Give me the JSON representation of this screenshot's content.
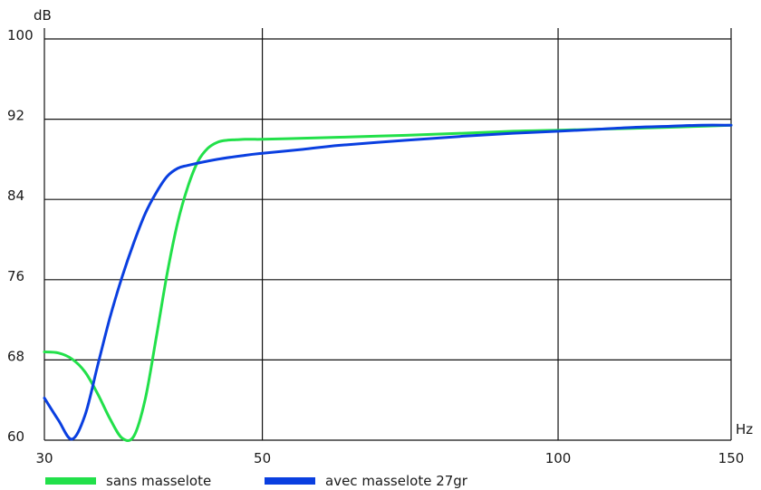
{
  "chart_data": {
    "type": "line",
    "x_scale": "log",
    "grid": true,
    "legend_position": "bottom-left",
    "xlabel": "Hz",
    "ylabel": "dB",
    "xlim": [
      30,
      150
    ],
    "ylim": [
      60,
      100
    ],
    "x_ticks": [
      30,
      50,
      100,
      150
    ],
    "x_tick_labels": [
      "30",
      "50",
      "100",
      "150"
    ],
    "y_ticks": [
      60,
      68,
      76,
      84,
      92,
      100
    ],
    "y_tick_labels": [
      "60",
      "68",
      "76",
      "84",
      "92",
      "100"
    ],
    "series": [
      {
        "name": "sans masselote",
        "color": "#22e04a",
        "x": [
          30,
          31,
          32,
          33,
          34,
          35,
          36,
          37,
          38,
          39,
          40,
          41,
          42,
          43,
          44,
          45,
          46,
          47,
          48,
          49,
          50,
          55,
          60,
          70,
          80,
          90,
          100,
          110,
          120,
          130,
          140,
          150
        ],
        "y": [
          68.8,
          68.7,
          68.1,
          66.8,
          64.6,
          62.1,
          60.2,
          60.4,
          64.1,
          70.3,
          76.6,
          81.7,
          85.3,
          87.8,
          89.1,
          89.7,
          89.9,
          89.95,
          90.0,
          90.0,
          90.0,
          90.1,
          90.2,
          90.4,
          90.6,
          90.8,
          90.9,
          91.0,
          91.1,
          91.2,
          91.3,
          91.4
        ]
      },
      {
        "name": "avec masselote 27gr",
        "color": "#0a3fe0",
        "x": [
          30,
          31,
          32,
          33,
          34,
          35,
          36,
          37,
          38,
          39,
          40,
          41,
          42,
          45,
          48,
          50,
          55,
          60,
          70,
          80,
          90,
          100,
          110,
          120,
          130,
          140,
          150
        ],
        "y": [
          64.2,
          62.0,
          60.1,
          62.5,
          67.5,
          72.3,
          76.3,
          79.7,
          82.6,
          84.7,
          86.3,
          87.1,
          87.4,
          88.0,
          88.4,
          88.6,
          89.0,
          89.4,
          89.9,
          90.3,
          90.6,
          90.8,
          91.0,
          91.2,
          91.3,
          91.4,
          91.4
        ]
      }
    ]
  }
}
